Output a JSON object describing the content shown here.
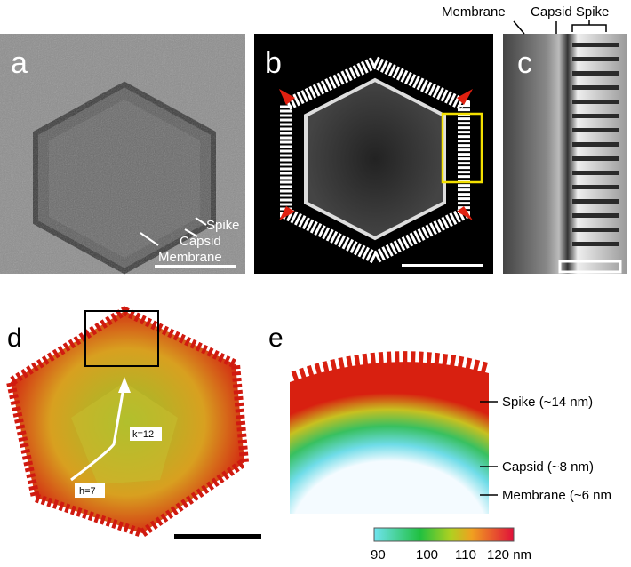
{
  "panels": {
    "a": {
      "label": "a",
      "annotations": [
        "Spike",
        "Capsid",
        "Membrane"
      ]
    },
    "b": {
      "label": "b"
    },
    "c": {
      "label": "c",
      "annotations": [
        "Membrane",
        "Capsid Spike"
      ]
    },
    "d": {
      "label": "d",
      "annotations": [
        "k=12",
        "h=7"
      ]
    },
    "e": {
      "label": "e",
      "annotations": [
        "Spike (~14 nm)",
        "Capsid (~8 nm)",
        "Membrane (~6 nm"
      ]
    }
  },
  "colorbar": {
    "labels": [
      "90",
      "100",
      "110",
      "120 nm"
    ]
  }
}
